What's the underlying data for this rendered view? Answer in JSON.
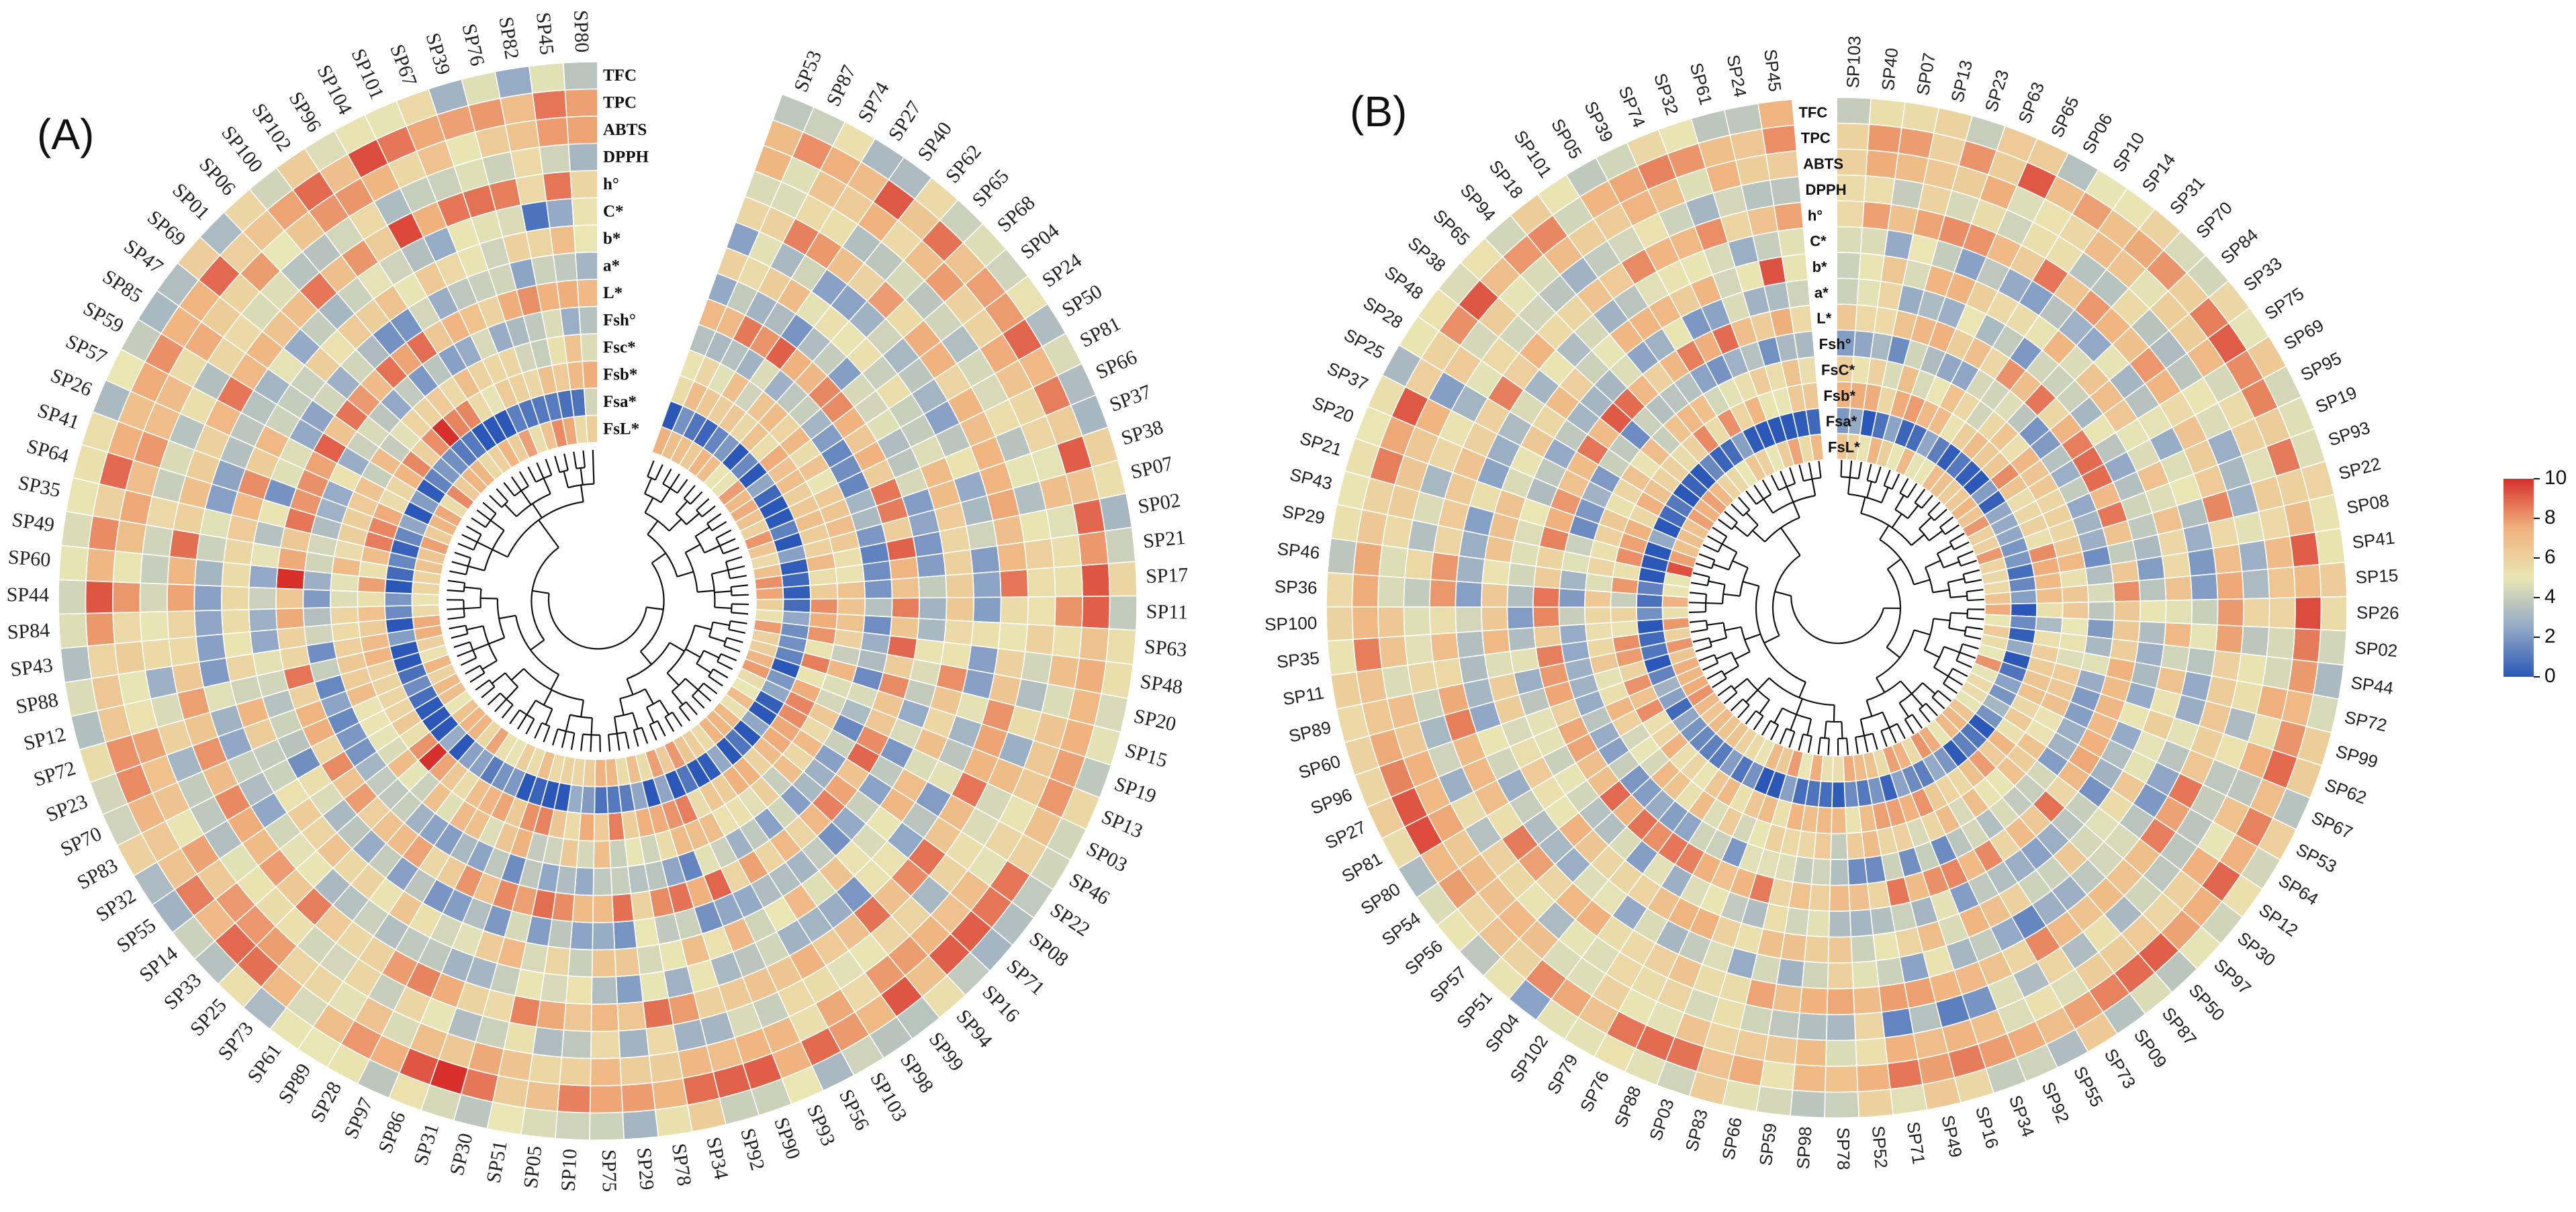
{
  "chart_data": [
    {
      "type": "heatmap",
      "layout": "circular",
      "panel_label": "(A)",
      "samples": [
        "SP53",
        "SP87",
        "SP74",
        "SP27",
        "SP40",
        "SP62",
        "SP65",
        "SP68",
        "SP04",
        "SP24",
        "SP50",
        "SP81",
        "SP66",
        "SP37",
        "SP38",
        "SP07",
        "SP02",
        "SP21",
        "SP17",
        "SP11",
        "SP63",
        "SP48",
        "SP20",
        "SP15",
        "SP19",
        "SP13",
        "SP03",
        "SP46",
        "SP22",
        "SP08",
        "SP71",
        "SP16",
        "SP94",
        "SP99",
        "SP98",
        "SP103",
        "SP56",
        "SP93",
        "SP90",
        "SP92",
        "SP34",
        "SP78",
        "SP29",
        "SP75",
        "SP10",
        "SP05",
        "SP51",
        "SP30",
        "SP31",
        "SP86",
        "SP97",
        "SP28",
        "SP89",
        "SP61",
        "SP73",
        "SP25",
        "SP33",
        "SP14",
        "SP55",
        "SP32",
        "SP83",
        "SP70",
        "SP23",
        "SP72",
        "SP12",
        "SP88",
        "SP43",
        "SP84",
        "SP44",
        "SP60",
        "SP49",
        "SP35",
        "SP64",
        "SP41",
        "SP26",
        "SP57",
        "SP59",
        "SP85",
        "SP47",
        "SP69",
        "SP01",
        "SP06",
        "SP100",
        "SP102",
        "SP96",
        "SP104",
        "SP101",
        "SP67",
        "SP39",
        "SP76",
        "SP82",
        "SP45",
        "SP80"
      ],
      "rings_outer_to_inner": [
        "TFC",
        "TPC",
        "ABTS",
        "DPPH",
        "h°",
        "C*",
        "b*",
        "a*",
        "L*",
        "Fsh°",
        "Fsc*",
        "Fsb*",
        "Fsa*",
        "FsL*"
      ],
      "ring_mean_values": [
        4.6,
        7.6,
        6.4,
        4.4,
        7.2,
        3.6,
        5.6,
        3.4,
        7.4,
        3.0,
        5.6,
        6.8,
        0.9,
        6.6
      ],
      "note": "cell values estimated from colour on a 0-10 scale"
    },
    {
      "type": "heatmap",
      "layout": "circular",
      "panel_label": "(B)",
      "samples": [
        "SP103",
        "SP40",
        "SP07",
        "SP13",
        "SP23",
        "SP63",
        "SP65",
        "SP06",
        "SP10",
        "SP14",
        "SP31",
        "SP70",
        "SP84",
        "SP33",
        "SP75",
        "SP69",
        "SP95",
        "SP19",
        "SP93",
        "SP22",
        "SP08",
        "SP41",
        "SP15",
        "SP26",
        "SP02",
        "SP44",
        "SP72",
        "SP99",
        "SP62",
        "SP67",
        "SP53",
        "SP64",
        "SP12",
        "SP30",
        "SP97",
        "SP50",
        "SP87",
        "SP09",
        "SP73",
        "SP55",
        "SP92",
        "SP34",
        "SP16",
        "SP49",
        "SP71",
        "SP52",
        "SP78",
        "SP98",
        "SP59",
        "SP66",
        "SP83",
        "SP03",
        "SP88",
        "SP76",
        "SP79",
        "SP102",
        "SP04",
        "SP51",
        "SP57",
        "SP56",
        "SP54",
        "SP80",
        "SP81",
        "SP27",
        "SP96",
        "SP60",
        "SP89",
        "SP11",
        "SP35",
        "SP100",
        "SP36",
        "SP46",
        "SP29",
        "SP43",
        "SP21",
        "SP20",
        "SP37",
        "SP25",
        "SP28",
        "SP48",
        "SP38",
        "SP65",
        "SP94",
        "SP18",
        "SP101",
        "SP05",
        "SP39",
        "SP74",
        "SP32",
        "SP61",
        "SP24",
        "SP45"
      ],
      "rings_outer_to_inner": [
        "TFC",
        "TPC",
        "ABTS",
        "DPPH",
        "h°",
        "C*",
        "b*",
        "a*",
        "L*",
        "Fsh°",
        "FsC*",
        "Fsb*",
        "Fsa*",
        "FsL*"
      ],
      "ring_mean_values": [
        4.8,
        7.6,
        6.0,
        4.4,
        7.0,
        3.8,
        5.8,
        3.4,
        7.2,
        3.2,
        5.6,
        6.6,
        0.9,
        6.6
      ],
      "note": "cell values estimated from colour on a 0-10 scale"
    }
  ],
  "colorbar": {
    "min": 0,
    "max": 10,
    "ticks": [
      "0",
      "2",
      "4",
      "6",
      "8",
      "10"
    ],
    "stops": [
      "#2b58b8",
      "#93a9c6",
      "#e9e6b4",
      "#f0b27e",
      "#d7302a"
    ]
  }
}
